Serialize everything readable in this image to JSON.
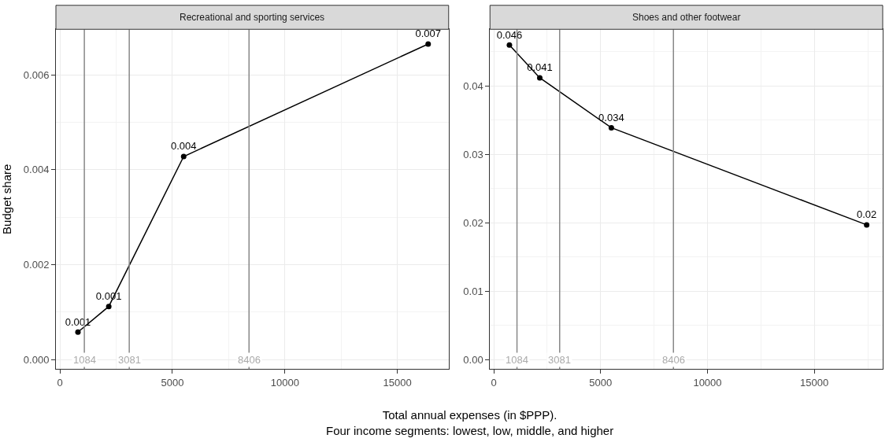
{
  "chart_data": [
    {
      "type": "line",
      "title": "Recreational and sporting services",
      "xlabel": "Total annual expenses (in $PPP).\nFour income segments: lowest, low, middle, and higher",
      "ylabel": "Budget share",
      "x": [
        800,
        2170,
        5500,
        16370
      ],
      "series": [
        {
          "color": "#000000",
          "values": [
            0.00058,
            0.00112,
            0.00428,
            0.00665
          ],
          "value_labels": [
            "0.001",
            "0.001",
            "0.004",
            "0.007"
          ]
        }
      ],
      "xlim": [
        -180,
        17280
      ],
      "xticks": [
        0,
        5000,
        10000,
        15000
      ],
      "ylim": [
        -0.0002,
        0.00696
      ],
      "yticks": [
        {
          "value": 0,
          "label": "0.000"
        },
        {
          "value": 0.002,
          "label": "0.002"
        },
        {
          "value": 0.004,
          "label": "0.004"
        },
        {
          "value": 0.006,
          "label": "0.006"
        }
      ],
      "ref_lines": [
        {
          "axis": "x",
          "value": 1084,
          "label": "1084",
          "color": "#888888"
        },
        {
          "axis": "x",
          "value": 3081,
          "label": "3081",
          "color": "#888888"
        },
        {
          "axis": "x",
          "value": 8406,
          "label": "8406",
          "color": "#888888"
        }
      ],
      "grid": true,
      "marker": "circle",
      "line_style": "solid"
    },
    {
      "type": "line",
      "title": "Shoes and other footwear",
      "x": [
        730,
        2150,
        5500,
        17450
      ],
      "series": [
        {
          "color": "#000000",
          "values": [
            0.046,
            0.0412,
            0.0339,
            0.0197
          ],
          "value_labels": [
            "0.046",
            "0.041",
            "0.034",
            "0.02"
          ]
        }
      ],
      "xlim": [
        -180,
        18200
      ],
      "xticks": [
        0,
        5000,
        10000,
        15000
      ],
      "ylim": [
        -0.0014,
        0.0483
      ],
      "yticks": [
        {
          "value": 0,
          "label": "0.00"
        },
        {
          "value": 0.01,
          "label": "0.01"
        },
        {
          "value": 0.02,
          "label": "0.02"
        },
        {
          "value": 0.03,
          "label": "0.03"
        },
        {
          "value": 0.04,
          "label": "0.04"
        }
      ],
      "ref_lines": [
        {
          "axis": "x",
          "value": 1084,
          "label": "1084",
          "color": "#888888"
        },
        {
          "axis": "x",
          "value": 3081,
          "label": "3081",
          "color": "#888888"
        },
        {
          "axis": "x",
          "value": 8406,
          "label": "8406",
          "color": "#888888"
        }
      ],
      "grid": true,
      "marker": "circle",
      "line_style": "solid"
    }
  ]
}
